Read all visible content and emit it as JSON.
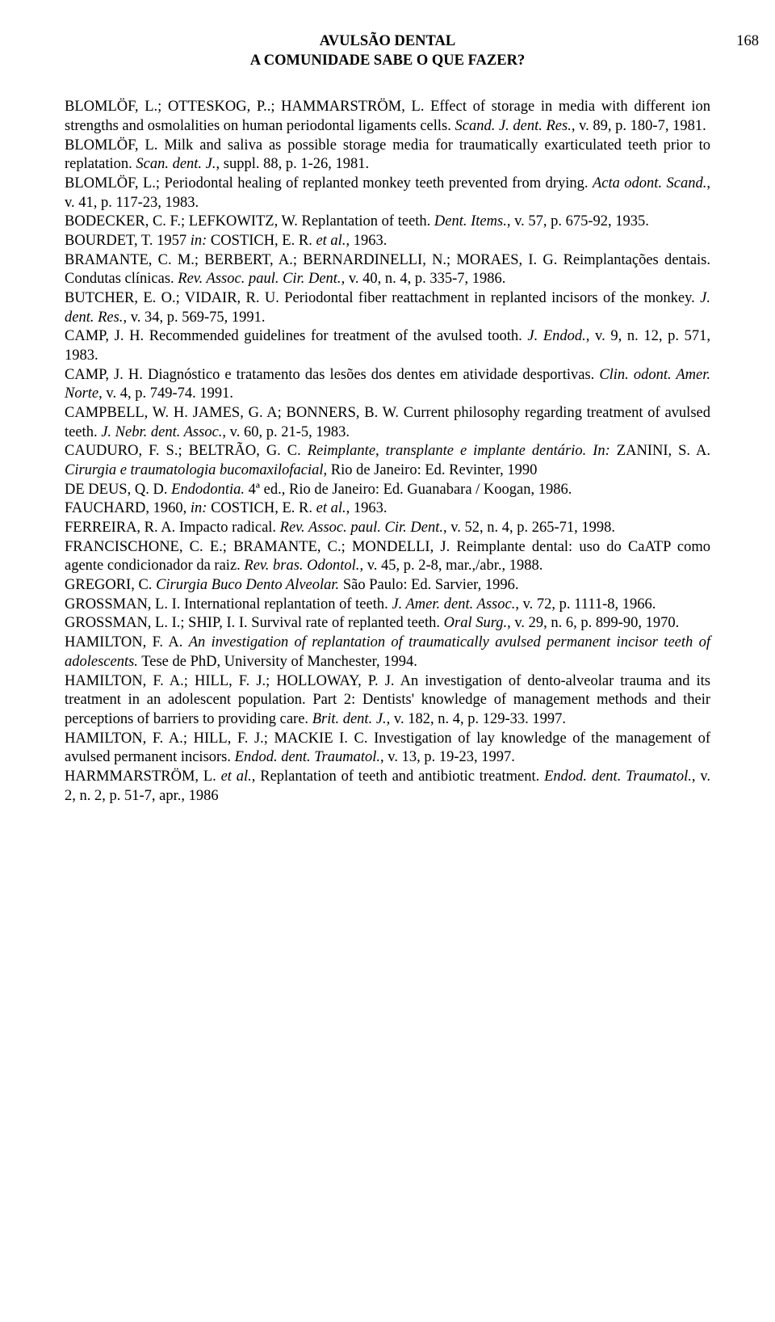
{
  "header": {
    "title": "AVULSÃO DENTAL",
    "subtitle": "A COMUNIDADE SABE O QUE FAZER?",
    "page": "168"
  },
  "refs": {
    "r1a": "BLOMLÖF, L.; OTTESKOG, P..; HAMMARSTRÖM, L. Effect of storage in media with different ion strengths and osmolalities on human periodontal ligaments cells. ",
    "r1b": "Scand. J. dent. Res.",
    "r1c": ", v. 89, p. 180-7, 1981.",
    "r2a": "BLOMLÖF, L. Milk and saliva as possible storage media for traumatically exarticulated teeth prior to replatation. ",
    "r2b": "Scan. dent. J.",
    "r2c": ", suppl. 88, p. 1-26, 1981.",
    "r3a": "BLOMLÖF, L.; Periodontal healing of replanted monkey teeth prevented from drying. ",
    "r3b": "Acta odont. Scand.",
    "r3c": ", v. 41, p. 117-23, 1983.",
    "r4a": "BODECKER, C. F.; LEFKOWITZ, W. Replantation of teeth. ",
    "r4b": "Dent. Items.",
    "r4c": ", v. 57, p. 675-92, 1935.",
    "r5a": "BOURDET, T. 1957 ",
    "r5b": "in:",
    "r5c": " COSTICH, E. R. ",
    "r5d": "et al.",
    "r5e": ", 1963.",
    "r6a": "BRAMANTE, C. M.; BERBERT, A.; BERNARDINELLI, N.; MORAES, I. G. Reimplantações dentais. Condutas clínicas. ",
    "r6b": "Rev. Assoc. paul. Cir. Dent.",
    "r6c": ", v. 40, n. 4, p. 335-7, 1986.",
    "r7a": "BUTCHER, E. O.; VIDAIR, R. U. Periodontal fiber reattachment in replanted incisors of the monkey. ",
    "r7b": "J. dent. Res.",
    "r7c": ", v. 34, p. 569-75, 1991.",
    "r8a": "CAMP, J. H. Recommended guidelines for treatment of the avulsed tooth. ",
    "r8b": "J. Endod.",
    "r8c": ", v. 9, n. 12, p. 571, 1983.",
    "r9a": "CAMP, J. H. Diagnóstico e tratamento das lesões dos dentes em atividade desportivas. ",
    "r9b": "Clin. odont. Amer. Norte",
    "r9c": ", v. 4, p. 749-74. 1991.",
    "r10a": "CAMPBELL, W. H. JAMES, G. A; BONNERS, B. W. Current philosophy regarding treatment of avulsed teeth. ",
    "r10b": "J. Nebr. dent. Assoc.",
    "r10c": ", v. 60, p. 21-5, 1983.",
    "r11a": "CAUDURO, F. S.; BELTRÃO, G. C. ",
    "r11b": "Reimplante, transplante e implante dentário. In:",
    "r11c": " ZANINI, S. A. ",
    "r11d": "Cirurgia e traumatologia bucomaxilofacial,",
    "r11e": " Rio de Janeiro: Ed. Revinter, 1990",
    "r12a": "DE DEUS, Q. D. ",
    "r12b": "Endodontia.",
    "r12c": " 4ª ed., Rio de Janeiro: Ed. Guanabara / Koogan, 1986.",
    "r13a": "FAUCHARD, 1960, ",
    "r13b": "in:",
    "r13c": " COSTICH, E. R. ",
    "r13d": "et al.",
    "r13e": ", 1963.",
    "r14a": "FERREIRA, R. A. Impacto radical. ",
    "r14b": "Rev. Assoc. paul. Cir. Dent.",
    "r14c": ",  v. 52, n. 4, p. 265-71, 1998.",
    "r15a": "FRANCISCHONE, C. E.; BRAMANTE, C.; MONDELLI, J. Reimplante dental: uso do CaATP como agente condicionador da raiz. ",
    "r15b": "Rev. bras. Odontol.",
    "r15c": ", v. 45, p. 2-8, mar.,/abr., 1988.",
    "r16a": "GREGORI, C. ",
    "r16b": "Cirurgia Buco Dento Alveolar.",
    "r16c": " São Paulo: Ed. Sarvier, 1996.",
    "r17a": "GROSSMAN, L. I. International replantation of teeth. ",
    "r17b": "J. Amer. dent. Assoc.",
    "r17c": ", v. 72, p. 1111-8, 1966.",
    "r18a": "GROSSMAN, L. I.; SHIP, I. I. Survival rate of replanted teeth. ",
    "r18b": "Oral Surg.",
    "r18c": ", v. 29, n. 6, p. 899-90, 1970.",
    "r19a": "HAMILTON, F. A. ",
    "r19b": "An investigation of replantation of traumatically avulsed permanent incisor teeth of adolescents.",
    "r19c": " Tese de PhD, University of Manchester, 1994.",
    "r20a": "HAMILTON, F. A.; HILL, F. J.; HOLLOWAY, P. J. An investigation of dento-alveolar trauma and its treatment in an adolescent population. Part 2: Dentists' knowledge of management methods and their perceptions of barriers to providing care. ",
    "r20b": "Brit. dent. J.",
    "r20c": ", v. 182, n. 4, p. 129-33. 1997.",
    "r21a": "HAMILTON, F. A.; HILL, F. J.; MACKIE I. C. Investigation of lay knowledge of the management of avulsed permanent incisors. ",
    "r21b": "Endod. dent. Traumatol.",
    "r21c": ", v. 13, p. 19-23, 1997.",
    "r22a": "HARMMARSTRÖM, L. ",
    "r22b": "et al.",
    "r22c": ", Replantation of teeth and antibiotic treatment. ",
    "r22d": "Endod. dent. Traumatol.",
    "r22e": ", v. 2, n. 2, p. 51-7, apr., 1986"
  }
}
